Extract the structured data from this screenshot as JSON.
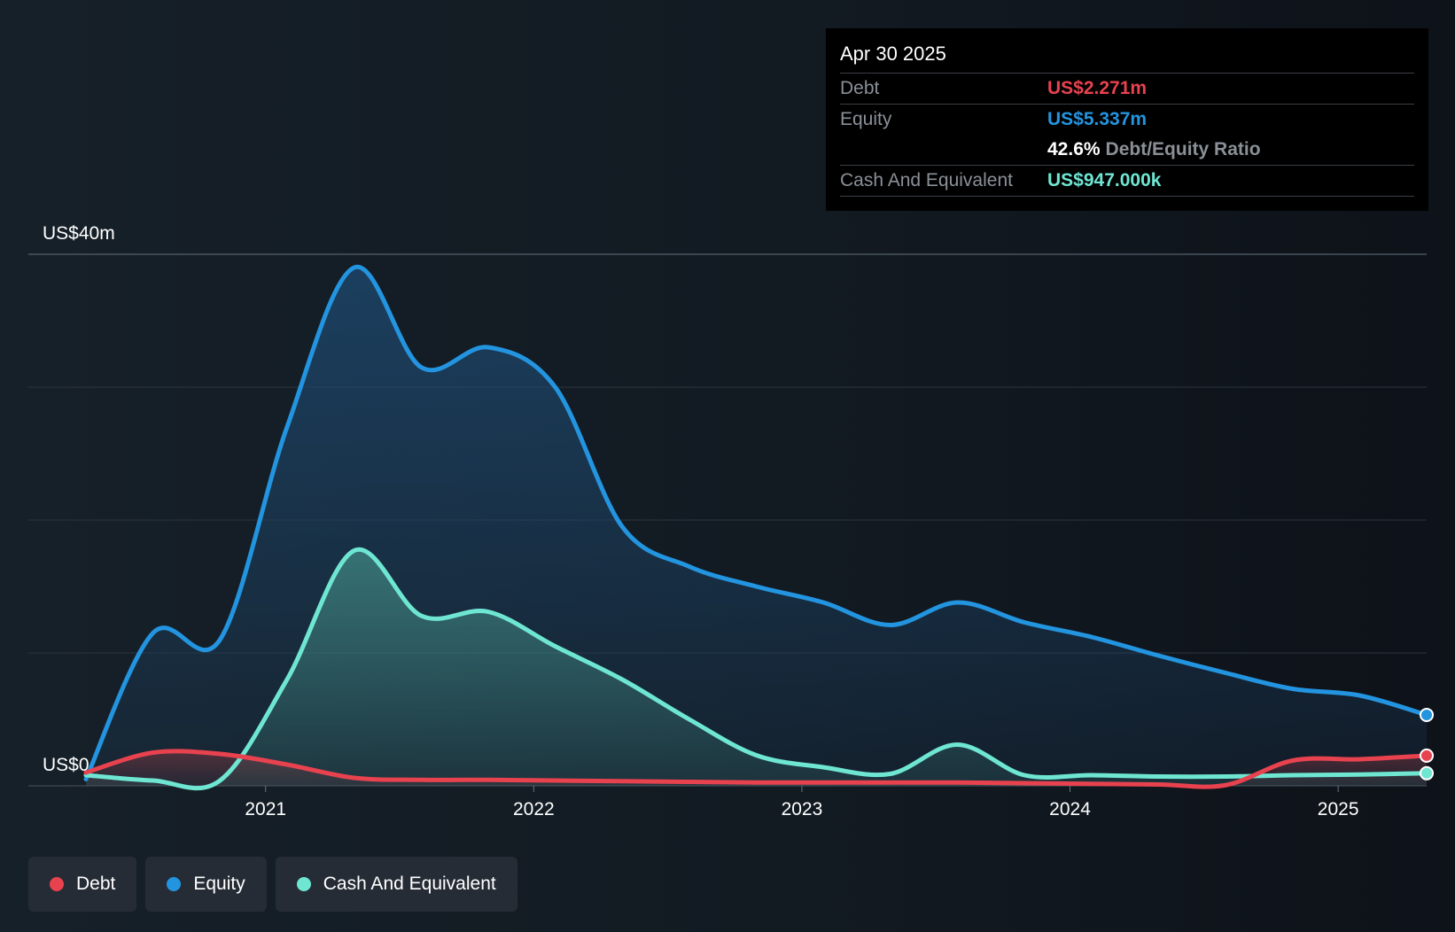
{
  "tooltip": {
    "date": "Apr 30 2025",
    "debt_label": "Debt",
    "debt_value": "US$2.271m",
    "equity_label": "Equity",
    "equity_value": "US$5.337m",
    "ratio_value": "42.6%",
    "ratio_label": "Debt/Equity Ratio",
    "cash_label": "Cash And Equivalent",
    "cash_value": "US$947.000k"
  },
  "legend": {
    "debt": "Debt",
    "equity": "Equity",
    "cash": "Cash And Equivalent"
  },
  "colors": {
    "debt": "#e8424f",
    "equity": "#2394df",
    "cash": "#6ee6d2",
    "grid": "#2c343d",
    "axis_text": "#ffffff"
  },
  "chart_data": {
    "type": "area",
    "title": "",
    "xlabel": "",
    "ylabel": "",
    "y_unit_labels": [
      "US$0",
      "US$40m"
    ],
    "ylim": [
      0,
      40
    ],
    "xlim": [
      2020.33,
      2025.33
    ],
    "x_ticks": [
      2021,
      2022,
      2023,
      2024,
      2025
    ],
    "x_tick_labels": [
      "2021",
      "2022",
      "2023",
      "2024",
      "2025"
    ],
    "series": [
      {
        "name": "Equity",
        "color_key": "equity",
        "points": [
          [
            2020.33,
            0.5
          ],
          [
            2020.58,
            11.5
          ],
          [
            2020.83,
            11.0
          ],
          [
            2021.08,
            27.0
          ],
          [
            2021.33,
            39.0
          ],
          [
            2021.58,
            31.5
          ],
          [
            2021.83,
            33.0
          ],
          [
            2022.08,
            30.0
          ],
          [
            2022.33,
            19.5
          ],
          [
            2022.58,
            16.5
          ],
          [
            2022.83,
            15.0
          ],
          [
            2023.08,
            13.8
          ],
          [
            2023.33,
            12.1
          ],
          [
            2023.58,
            13.8
          ],
          [
            2023.83,
            12.3
          ],
          [
            2024.08,
            11.2
          ],
          [
            2024.33,
            9.8
          ],
          [
            2024.58,
            8.5
          ],
          [
            2024.83,
            7.3
          ],
          [
            2025.08,
            6.8
          ],
          [
            2025.33,
            5.337
          ]
        ]
      },
      {
        "name": "Cash And Equivalent",
        "color_key": "cash",
        "points": [
          [
            2020.33,
            0.8
          ],
          [
            2020.58,
            0.4
          ],
          [
            2020.83,
            0.4
          ],
          [
            2021.08,
            8.0
          ],
          [
            2021.33,
            17.7
          ],
          [
            2021.58,
            12.8
          ],
          [
            2021.83,
            13.1
          ],
          [
            2022.08,
            10.5
          ],
          [
            2022.33,
            8.0
          ],
          [
            2022.58,
            5.0
          ],
          [
            2022.83,
            2.3
          ],
          [
            2023.08,
            1.4
          ],
          [
            2023.33,
            0.9
          ],
          [
            2023.58,
            3.1
          ],
          [
            2023.83,
            0.8
          ],
          [
            2024.08,
            0.8
          ],
          [
            2024.33,
            0.7
          ],
          [
            2024.58,
            0.7
          ],
          [
            2024.83,
            0.8
          ],
          [
            2025.08,
            0.85
          ],
          [
            2025.33,
            0.947
          ]
        ]
      },
      {
        "name": "Debt",
        "color_key": "debt",
        "points": [
          [
            2020.33,
            1.0
          ],
          [
            2020.58,
            2.5
          ],
          [
            2020.83,
            2.4
          ],
          [
            2021.08,
            1.6
          ],
          [
            2021.33,
            0.6
          ],
          [
            2021.58,
            0.45
          ],
          [
            2021.83,
            0.45
          ],
          [
            2022.08,
            0.4
          ],
          [
            2022.33,
            0.35
          ],
          [
            2022.58,
            0.3
          ],
          [
            2022.83,
            0.25
          ],
          [
            2023.08,
            0.25
          ],
          [
            2023.33,
            0.25
          ],
          [
            2023.58,
            0.25
          ],
          [
            2023.83,
            0.2
          ],
          [
            2024.08,
            0.15
          ],
          [
            2024.33,
            0.1
          ],
          [
            2024.58,
            0.05
          ],
          [
            2024.83,
            1.9
          ],
          [
            2025.08,
            2.0
          ],
          [
            2025.33,
            2.271
          ]
        ]
      }
    ]
  }
}
